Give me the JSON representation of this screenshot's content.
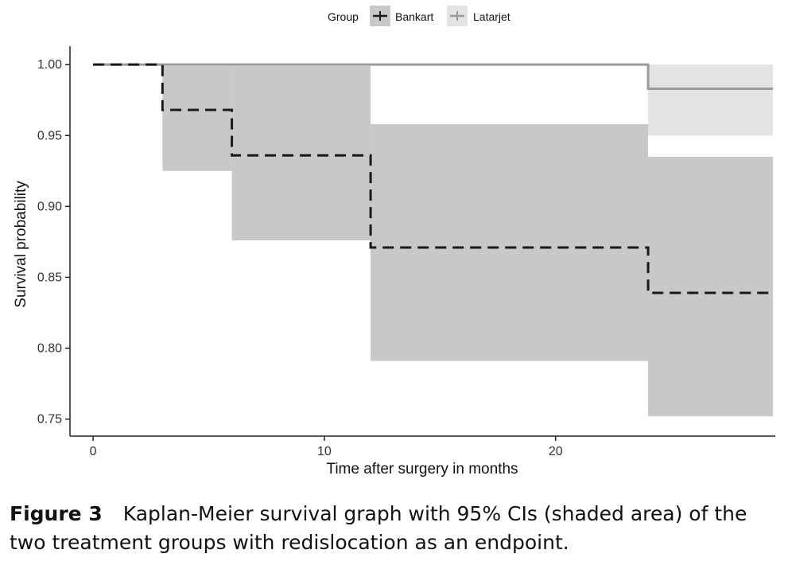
{
  "chart_data": {
    "type": "line",
    "subtype": "kaplan-meier step",
    "title": "",
    "xlabel": "Time after surgery in months",
    "ylabel": "Survival probability",
    "xlim": [
      -1,
      29.5
    ],
    "ylim": [
      0.738,
      1.013
    ],
    "x_ticks": [
      0,
      10,
      20
    ],
    "x_tick_labels": [
      "0",
      "10",
      "20"
    ],
    "y_ticks": [
      0.75,
      0.8,
      0.85,
      0.9,
      0.95,
      1.0
    ],
    "y_tick_labels": [
      "0.75",
      "0.80",
      "0.85",
      "0.90",
      "0.95",
      "1.00"
    ],
    "grid": false,
    "legend": {
      "title": "Group",
      "position": "top",
      "entries": [
        "Bankart",
        "Latarjet"
      ]
    },
    "series": [
      {
        "name": "Bankart",
        "line_style": "dashed",
        "color": "#1a1a1a",
        "ci_color": "#c8c8c8",
        "steps": [
          {
            "x_start": 0,
            "x_end": 3,
            "estimate": 1.0,
            "lower": 1.0,
            "upper": 1.0
          },
          {
            "x_start": 3,
            "x_end": 6,
            "estimate": 0.968,
            "lower": 0.925,
            "upper": 0.999
          },
          {
            "x_start": 6,
            "x_end": 12,
            "estimate": 0.936,
            "lower": 0.876,
            "upper": 0.999
          },
          {
            "x_start": 12,
            "x_end": 24,
            "estimate": 0.871,
            "lower": 0.791,
            "upper": 0.958
          },
          {
            "x_start": 24,
            "x_end": 29.4,
            "estimate": 0.839,
            "lower": 0.752,
            "upper": 0.935
          }
        ]
      },
      {
        "name": "Latarjet",
        "line_style": "solid",
        "color": "#9a9a9a",
        "ci_color": "#e3e3e3",
        "steps": [
          {
            "x_start": 0,
            "x_end": 24,
            "estimate": 1.0,
            "lower": 1.0,
            "upper": 1.0
          },
          {
            "x_start": 24,
            "x_end": 29.4,
            "estimate": 0.983,
            "lower": 0.95,
            "upper": 1.0
          }
        ]
      }
    ]
  },
  "caption": {
    "label": "Figure 3",
    "text": "Kaplan-Meier survival graph with 95% CIs (shaded area) of the two treatment groups with redislocation as an endpoint."
  }
}
